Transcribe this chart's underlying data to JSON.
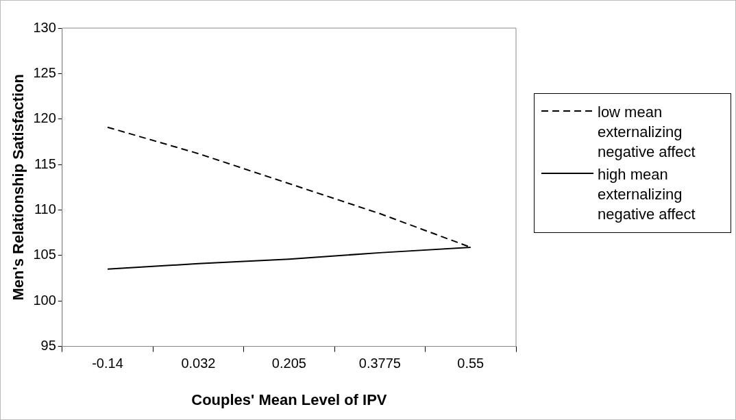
{
  "chart_data": {
    "type": "line",
    "xlabel": "Couples' Mean Level of IPV",
    "ylabel": "Men's Relationship Satisfaction",
    "categories": [
      "-0.14",
      "0.032",
      "0.205",
      "0.3775",
      "0.55"
    ],
    "series": [
      {
        "name": "low mean externalizing negative affect",
        "color": "#000000",
        "line_style": "dashed",
        "values": [
          119.1,
          116.2,
          112.9,
          109.6,
          105.9
        ]
      },
      {
        "name": "high mean externalizing negative affect",
        "color": "#000000",
        "line_style": "solid",
        "values": [
          103.5,
          104.1,
          104.6,
          105.3,
          105.9
        ]
      }
    ],
    "ylim": [
      95,
      130
    ],
    "yticks": [
      95,
      100,
      105,
      110,
      115,
      120,
      125,
      130
    ],
    "grid": false,
    "legend": "right",
    "marker": "none"
  }
}
